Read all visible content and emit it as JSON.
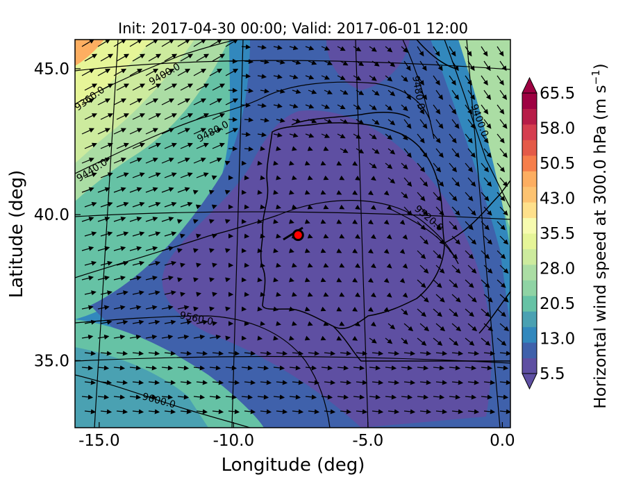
{
  "title": "Init: 2017-04-30 00:00; Valid: 2017-06-01 12:00",
  "x_axis": {
    "label": "Longitude (deg)",
    "ticks": [
      {
        "value": -15.0,
        "label": "-15.0"
      },
      {
        "value": -10.0,
        "label": "-10.0"
      },
      {
        "value": -5.0,
        "label": "-5.0"
      },
      {
        "value": 0.0,
        "label": "0.0"
      }
    ],
    "range": [
      -15.9,
      0.3
    ]
  },
  "y_axis": {
    "label": "Latitude (deg)",
    "ticks": [
      {
        "value": 35.0,
        "label": "35.0"
      },
      {
        "value": 40.0,
        "label": "40.0"
      },
      {
        "value": 45.0,
        "label": "45.0"
      }
    ],
    "range": [
      32.7,
      46.0
    ]
  },
  "colorbar": {
    "label_main": "Horizontal wind speed at 300.0 hPa (m s",
    "label_sup": "−1",
    "label_close": ")",
    "ticks": [
      "5.5",
      "13.0",
      "20.5",
      "28.0",
      "35.5",
      "43.0",
      "50.5",
      "58.0",
      "65.5"
    ],
    "range": [
      5.5,
      65.5
    ],
    "extend": "both",
    "colors": [
      "#5e4fa2",
      "#3f61ab",
      "#3288bd",
      "#4aa1b2",
      "#66c2a5",
      "#8fd3a4",
      "#abdda4",
      "#cdeb9e",
      "#e6f598",
      "#f7fbaf",
      "#fee08b",
      "#fdc371",
      "#fdae61",
      "#f67e4b",
      "#e45a48",
      "#d53e4f",
      "#b71d48",
      "#9e0142"
    ]
  },
  "contours": {
    "labels": [
      "9360.0",
      "9400.0",
      "9400.0",
      "9440.0",
      "9480.0",
      "9480.0",
      "9520.0",
      "9560.0",
      "9600.0"
    ]
  },
  "marker": {
    "lon": -7.6,
    "lat": 39.3,
    "color": "#ff0000"
  },
  "map_colors": {
    "low": "#5e4fa2",
    "mid": "#3288bd",
    "green": "#66c2a5",
    "yellow": "#e6f598",
    "orange": "#fdae61"
  }
}
